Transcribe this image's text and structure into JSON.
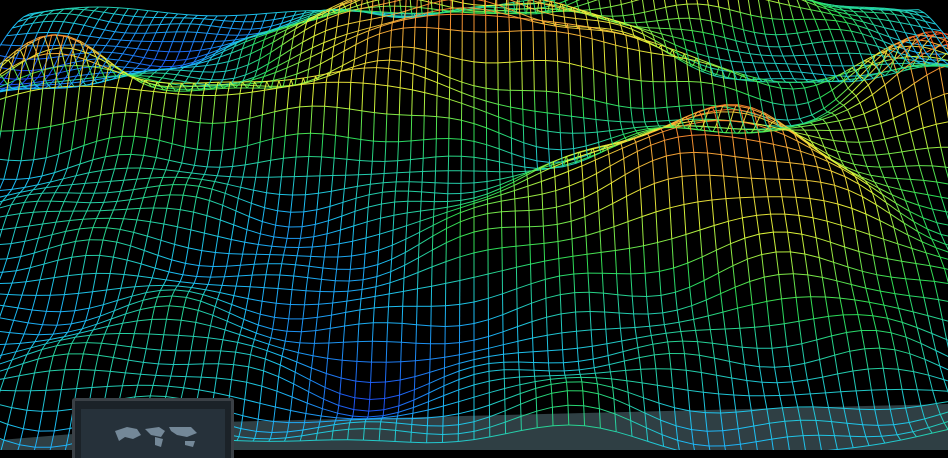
{
  "scene": {
    "subject": "wireframe-terrain",
    "colormap": [
      "#1f3fff",
      "#1ec8ff",
      "#2ee85a",
      "#e8ff3a",
      "#ffb23a",
      "#ff4a1e"
    ],
    "background": "#000000",
    "floor_color": "#2f3f44"
  },
  "monitor": {
    "frame_color": "#3a4046",
    "screen_color": "#26313a",
    "map_color": "#8fa6b8"
  }
}
